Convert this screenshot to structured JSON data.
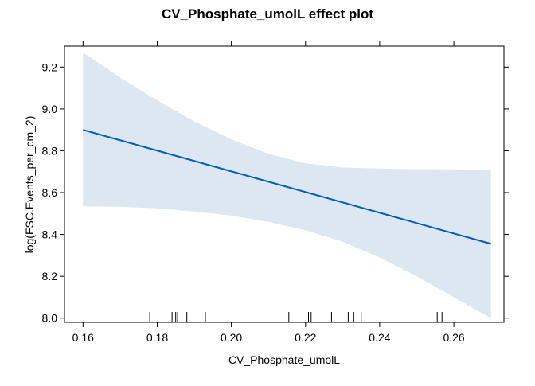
{
  "chart_data": {
    "type": "line",
    "title": "CV_Phosphate_umolL effect plot",
    "xlabel": "CV_Phosphate_umolL",
    "ylabel": "log(FSC.Events_per_cm_2)",
    "xlim": [
      0.155,
      0.2735
    ],
    "ylim": [
      7.98,
      9.3
    ],
    "x_ticks": [
      0.16,
      0.18,
      0.2,
      0.22,
      0.24,
      0.26
    ],
    "x_tick_labels": [
      "0.16",
      "0.18",
      "0.20",
      "0.22",
      "0.24",
      "0.26"
    ],
    "y_ticks": [
      8.0,
      8.2,
      8.4,
      8.6,
      8.8,
      9.0,
      9.2
    ],
    "y_tick_labels": [
      "8.0",
      "8.2",
      "8.4",
      "8.6",
      "8.8",
      "9.0",
      "9.2"
    ],
    "grid": false,
    "series": [
      {
        "x": [
          0.16,
          0.27
        ],
        "y": [
          8.9,
          8.355
        ],
        "color": "#0060b0"
      }
    ],
    "confidence_band": {
      "x": [
        0.16,
        0.17,
        0.18,
        0.19,
        0.2,
        0.21,
        0.22,
        0.23,
        0.24,
        0.25,
        0.26,
        0.27
      ],
      "upper": [
        9.27,
        9.15,
        9.04,
        8.94,
        8.855,
        8.785,
        8.74,
        8.72,
        8.715,
        8.712,
        8.711,
        8.71
      ],
      "lower": [
        8.535,
        8.532,
        8.525,
        8.51,
        8.49,
        8.46,
        8.42,
        8.365,
        8.29,
        8.2,
        8.1,
        8.0
      ],
      "color": "#dce7f2"
    },
    "rug": [
      0.178,
      0.184,
      0.185,
      0.1855,
      0.188,
      0.193,
      0.2155,
      0.2208,
      0.2215,
      0.227,
      0.2315,
      0.233,
      0.235,
      0.2555,
      0.2568
    ]
  }
}
